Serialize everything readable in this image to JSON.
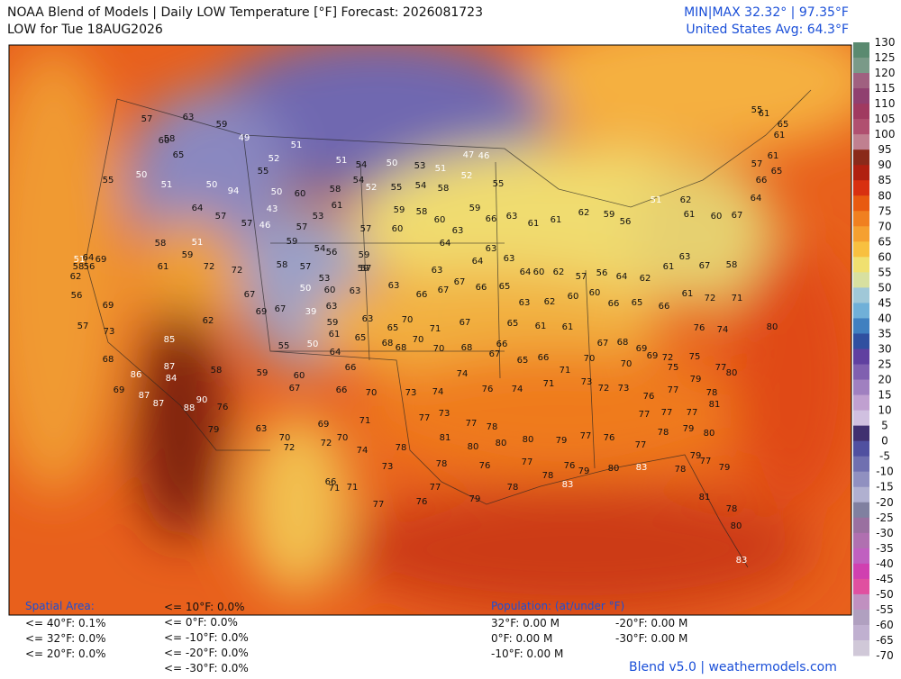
{
  "header": {
    "title_line1": "NOAA Blend of Models | Daily LOW Temperature [°F] Forecast: 2026081723",
    "title_line2": "LOW for Tue 18AUG2026",
    "minmax": "MIN|MAX 32.32°  | 97.35°F",
    "avg": "United States Avg: 64.3°F"
  },
  "colorbar": {
    "ticks": [
      130,
      125,
      120,
      115,
      110,
      105,
      100,
      95,
      90,
      85,
      80,
      75,
      70,
      65,
      60,
      55,
      50,
      45,
      40,
      35,
      30,
      25,
      20,
      15,
      10,
      5,
      0,
      -5,
      -10,
      -15,
      -20,
      -25,
      -30,
      -35,
      -40,
      -45,
      -50,
      -55,
      -60,
      -65,
      -70
    ],
    "colors": [
      "#5a8a70",
      "#7a9a88",
      "#a06080",
      "#904070",
      "#a03a60",
      "#b05070",
      "#c08090",
      "#8a2a1a",
      "#b02010",
      "#d83010",
      "#e85a10",
      "#f08020",
      "#f5a030",
      "#f8c040",
      "#f0e070",
      "#d8e0a0",
      "#a0c8d8",
      "#70b0d8",
      "#4080c0",
      "#3050a0",
      "#6040a0",
      "#8060b0",
      "#a080c0",
      "#c0a0d0",
      "#d0c0e0",
      "#403070",
      "#5050a0",
      "#7070b0",
      "#9090c0",
      "#b0b0d0",
      "#8080a0",
      "#9a70a0",
      "#b070b0",
      "#c060c0",
      "#d040b0",
      "#e050a0",
      "#c090c0",
      "#b0a0c0",
      "#c0b0d0",
      "#d0c8d8"
    ]
  },
  "stations": [
    63,
    58,
    59,
    57,
    60,
    49,
    65,
    51,
    52,
    55,
    55,
    50,
    51,
    50,
    94,
    50,
    60,
    58,
    52,
    55,
    54,
    58,
    50,
    53,
    51,
    47,
    46,
    52,
    55,
    51,
    54,
    54,
    61,
    59,
    58,
    60,
    63,
    59,
    66,
    63,
    61,
    61,
    62,
    59,
    56,
    51,
    62,
    61,
    60,
    67,
    64,
    66,
    65,
    61,
    55,
    57,
    61,
    65,
    61,
    57,
    60,
    64,
    63,
    63,
    64,
    63,
    63,
    66,
    67,
    67,
    66,
    65,
    63,
    62,
    60,
    60,
    66,
    65,
    66,
    61,
    72,
    71,
    58,
    67,
    63,
    61,
    62,
    64,
    56,
    57,
    62,
    60,
    64,
    70,
    71,
    67,
    65,
    61,
    61,
    67,
    68,
    69,
    72,
    76,
    74,
    80,
    68,
    70,
    68,
    67,
    66,
    65,
    66,
    71,
    70,
    70,
    69,
    75,
    77,
    80,
    75,
    70,
    73,
    74,
    74,
    76,
    74,
    71,
    73,
    72,
    73,
    76,
    77,
    79,
    78,
    81,
    77,
    77,
    77,
    78,
    79,
    80,
    79,
    78,
    77,
    79,
    81,
    78,
    80,
    83,
    77,
    73,
    77,
    78,
    81,
    80,
    80,
    80,
    79,
    77,
    76,
    77,
    80,
    83,
    74,
    78,
    78,
    73,
    76,
    77,
    77,
    76,
    79,
    83,
    78,
    78,
    79,
    76,
    77,
    71,
    71,
    66,
    71,
    69,
    70,
    72,
    70,
    72,
    63,
    60,
    67,
    66,
    66,
    64,
    50,
    55,
    59,
    58,
    85,
    87,
    84,
    86,
    87,
    87,
    88,
    90,
    76,
    79,
    69,
    68,
    73,
    57,
    69,
    56,
    62,
    58,
    56,
    64,
    51,
    69,
    58,
    61,
    59,
    72,
    72,
    62,
    67,
    69,
    67,
    39,
    63,
    59,
    61,
    50,
    60,
    63,
    65,
    63,
    68,
    70,
    65,
    59,
    59,
    57,
    57,
    58,
    54,
    56,
    53,
    59,
    57,
    53,
    43,
    57,
    46,
    57,
    64,
    51
  ],
  "spatial": {
    "title": "Spatial Area:",
    "items": [
      "<= 40°F: 0.1%",
      "<= 32°F: 0.0%",
      "<= 20°F: 0.0%",
      "<= 10°F: 0.0%",
      "<= 0°F: 0.0%",
      "<= -10°F: 0.0%",
      "<= -20°F: 0.0%",
      "<= -30°F: 0.0%"
    ]
  },
  "population": {
    "title": "Population: (at/under °F)",
    "items": [
      "32°F: 0.00 M",
      "0°F: 0.00 M",
      "-10°F: 0.00 M",
      "-20°F: 0.00 M",
      "-30°F: 0.00 M"
    ]
  },
  "footer": "Blend v5.0 | weathermodels.com"
}
